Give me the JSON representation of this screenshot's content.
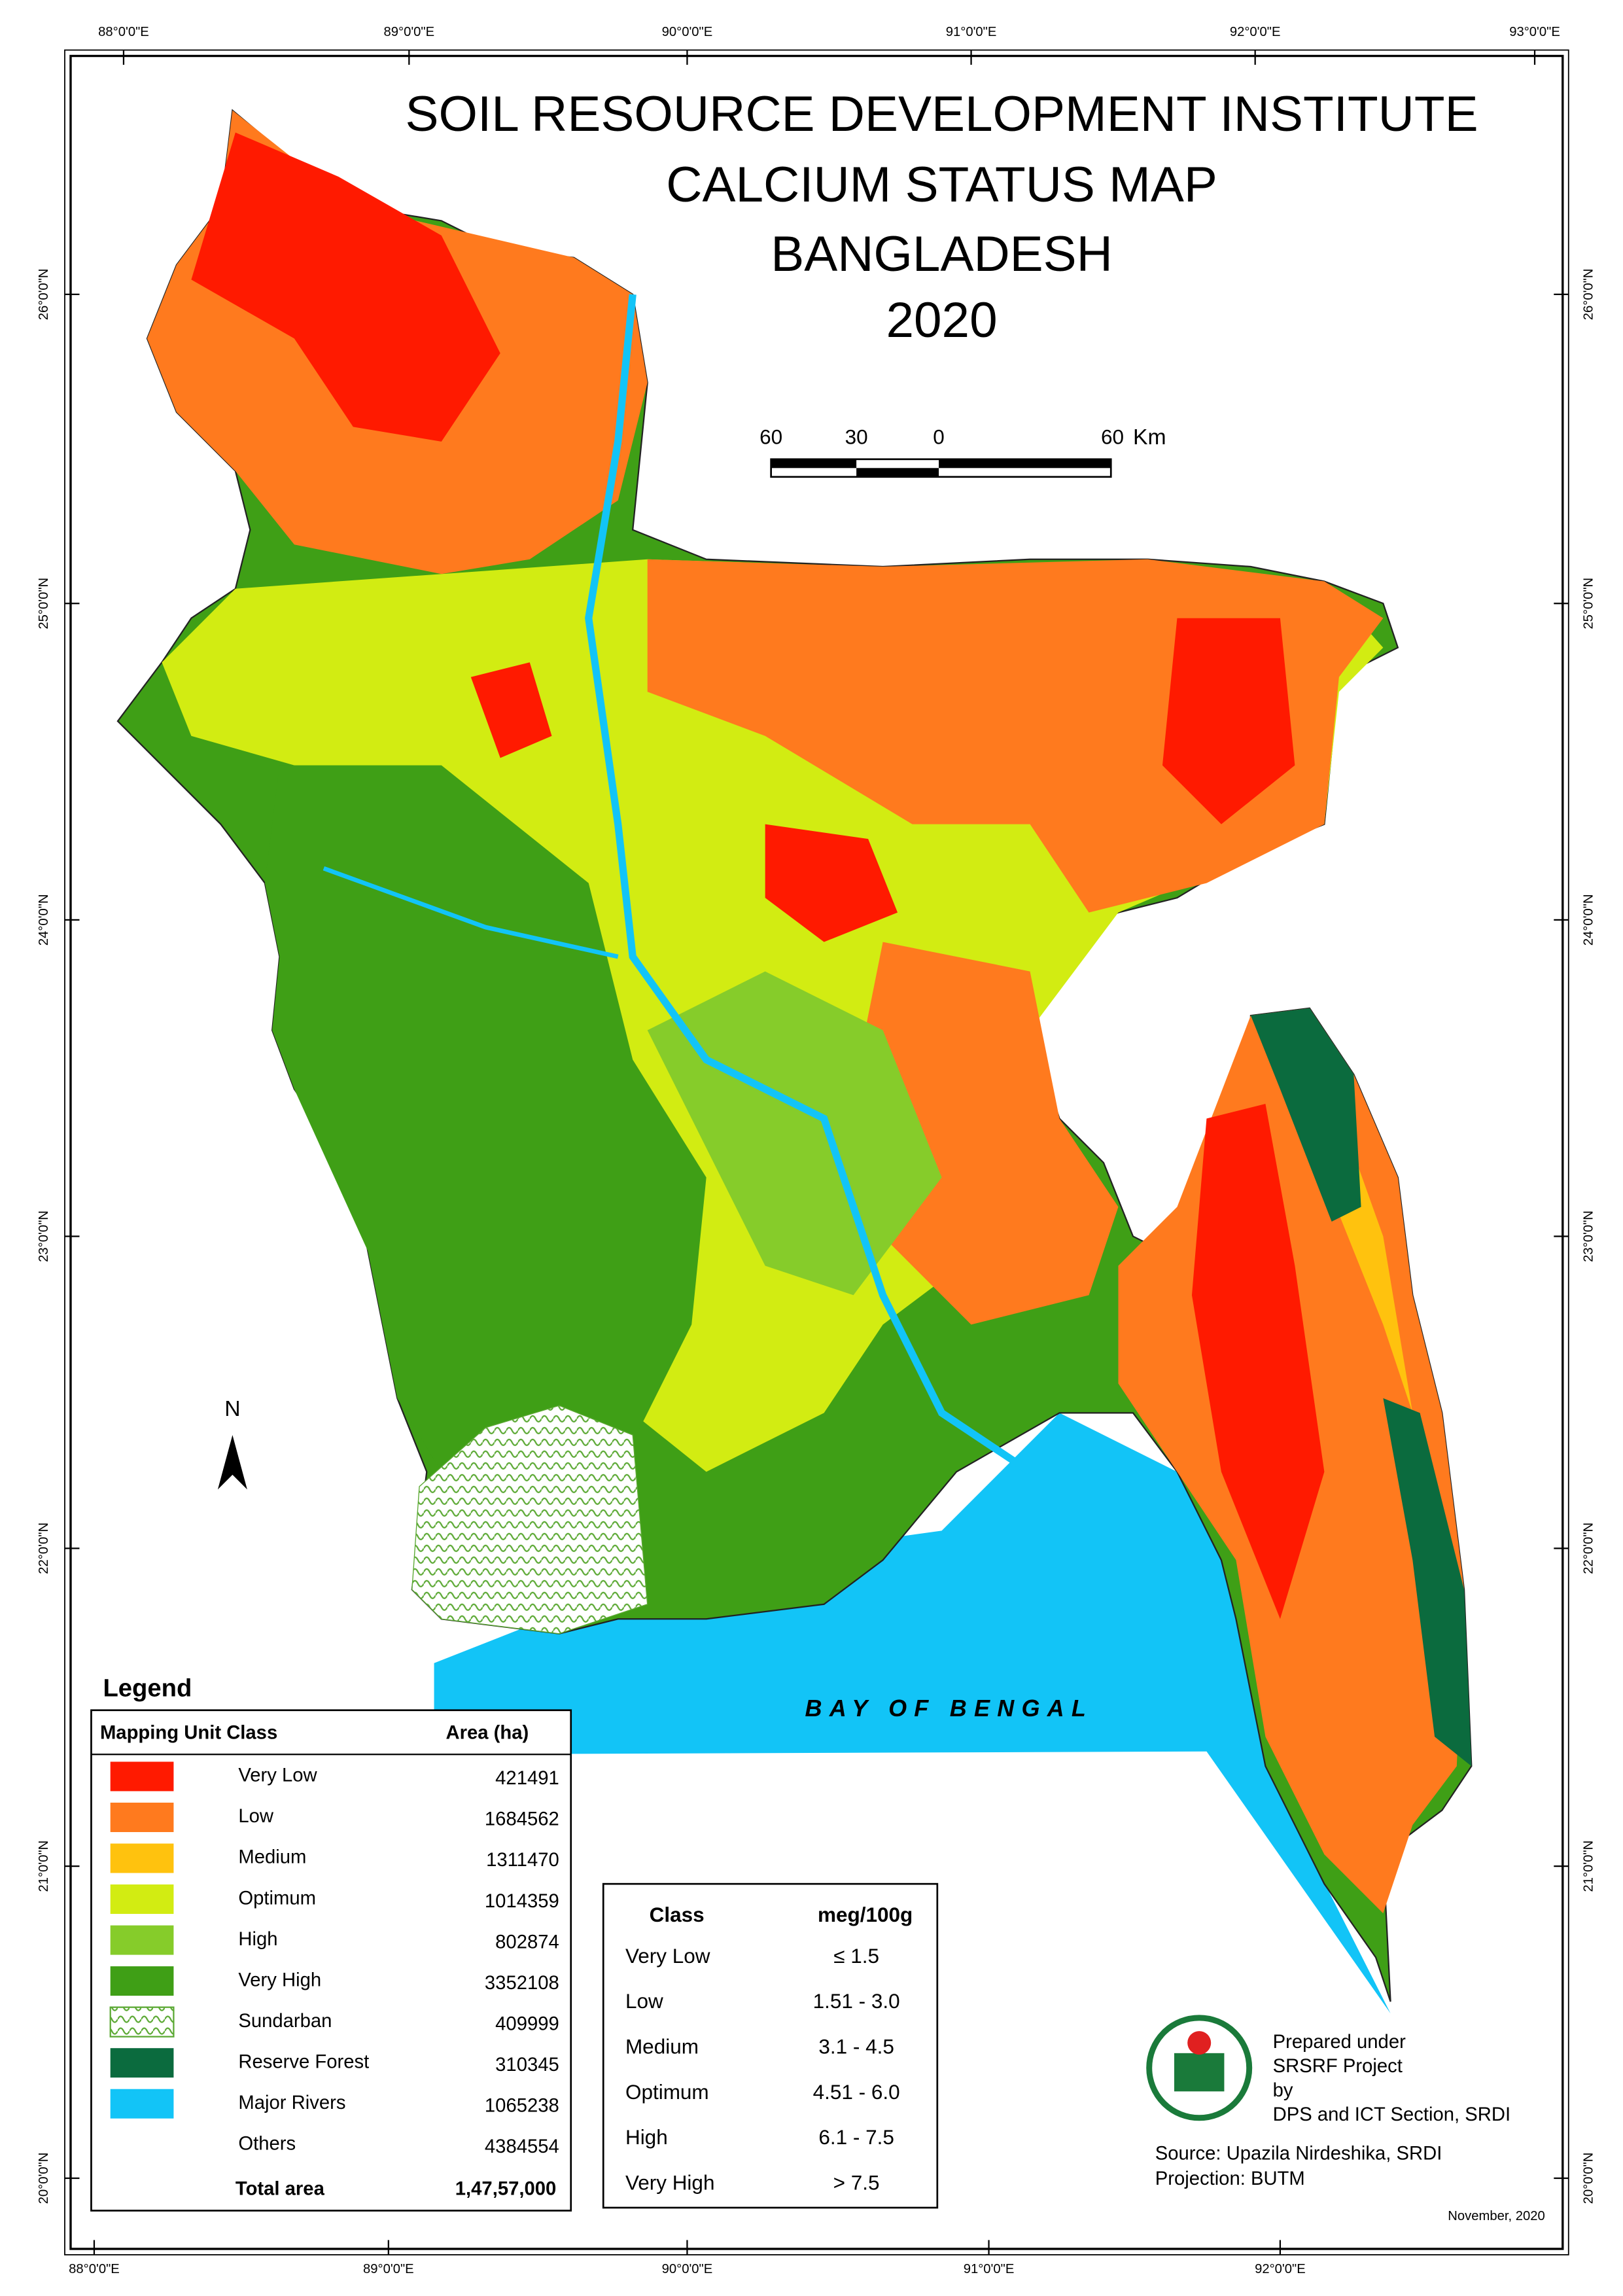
{
  "header": {
    "title_lines": [
      "SOIL RESOURCE DEVELOPMENT INSTITUTE",
      "CALCIUM STATUS MAP",
      "BANGLADESH",
      "2020"
    ]
  },
  "scale_bar": {
    "labels": [
      "60",
      "30",
      "0",
      "60"
    ],
    "unit": "Km"
  },
  "graticule": {
    "top": [
      "88°0'0\"E",
      "89°0'0\"E",
      "90°0'0\"E",
      "91°0'0\"E",
      "92°0'0\"E",
      "93°0'0\"E"
    ],
    "bottom": [
      "88°0'0\"E",
      "89°0'0\"E",
      "90°0'0\"E",
      "91°0'0\"E",
      "92°0'0\"E"
    ],
    "left": [
      "26°0'0\"N",
      "25°0'0\"N",
      "24°0'0\"N",
      "23°0'0\"N",
      "22°0'0\"N",
      "21°0'0\"N",
      "20°0'0\"N"
    ],
    "right": [
      "26°0'0\"N",
      "25°0'0\"N",
      "24°0'0\"N",
      "23°0'0\"N",
      "22°0'0\"N",
      "21°0'0\"N",
      "20°0'0\"N"
    ]
  },
  "north": "N",
  "bay_label": "BAY OF BENGAL",
  "legend": {
    "title": "Legend",
    "headers": [
      "Mapping Unit  Class",
      "Area (ha)"
    ],
    "rows": [
      {
        "class": "Very Low",
        "area": 421491,
        "color": "#ff1a00"
      },
      {
        "class": "Low",
        "area": 1684562,
        "color": "#ff7a1e"
      },
      {
        "class": "Medium",
        "area": 1311470,
        "color": "#ffc20e"
      },
      {
        "class": "Optimum",
        "area": 1014359,
        "color": "#d2ec12"
      },
      {
        "class": "High",
        "area": 802874,
        "color": "#86cc2a"
      },
      {
        "class": "Very High",
        "area": 3352108,
        "color": "#3f9f16"
      },
      {
        "class": "Sundarban",
        "area": 409999,
        "color": "#5aa832",
        "hatched": true
      },
      {
        "class": "Reserve Forest",
        "area": 310345,
        "color": "#0b6b3e"
      },
      {
        "class": "Major Rivers",
        "area": 1065238,
        "color": "#12c4f7"
      },
      {
        "class": "Others",
        "area": 4384554
      }
    ],
    "total": {
      "label": "Total area",
      "value": "1,47,57,000"
    }
  },
  "class_table": {
    "headers": [
      "Class",
      "meg/100g"
    ],
    "rows": [
      [
        "Very Low",
        "≤ 1.5"
      ],
      [
        "Low",
        "1.51 - 3.0"
      ],
      [
        "Medium",
        "3.1 - 4.5"
      ],
      [
        "Optimum",
        "4.51 - 6.0"
      ],
      [
        "High",
        "6.1 - 7.5"
      ],
      [
        "Very High",
        "> 7.5"
      ]
    ]
  },
  "credits": {
    "logo": "SRDI",
    "prepared": [
      "Prepared under",
      "SRSRF Project",
      "by",
      "DPS and ICT Section, SRDI"
    ],
    "source": [
      "Source: Upazila Nirdeshika, SRDI",
      "Projection: BUTM"
    ],
    "date": "November, 2020"
  }
}
